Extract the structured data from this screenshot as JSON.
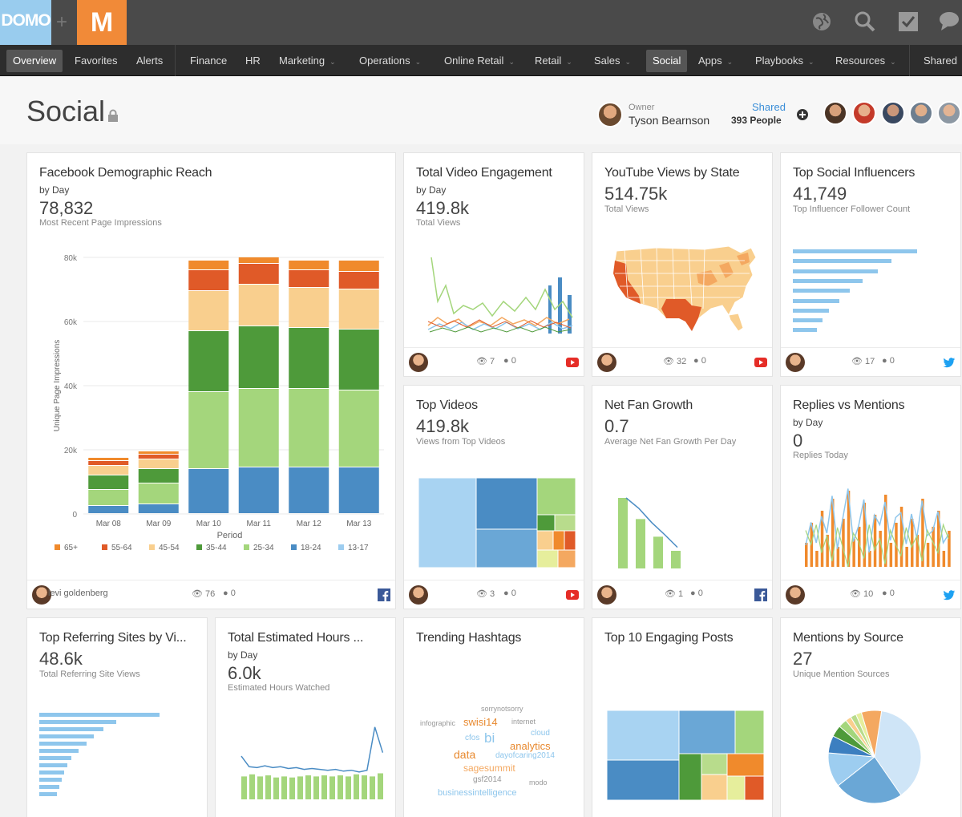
{
  "app": {
    "logo_text": "DOMO",
    "plus": "+",
    "m_logo": "M"
  },
  "icons": {
    "globe": "globe-icon",
    "search": "search-icon",
    "check": "checkbox-icon",
    "chat": "chat-icon",
    "lock": "lock-icon",
    "eye": "eye-icon",
    "comment": "comment-icon",
    "youtube": "youtube-icon",
    "facebook": "facebook-icon",
    "twitter": "twitter-icon",
    "add": "add-icon"
  },
  "nav": {
    "overview": "Overview",
    "favorites": "Favorites",
    "alerts": "Alerts",
    "finance": "Finance",
    "hr": "HR",
    "marketing": "Marketing",
    "operations": "Operations",
    "online_retail": "Online Retail",
    "retail": "Retail",
    "sales": "Sales",
    "social": "Social",
    "apps": "Apps",
    "playbooks": "Playbooks",
    "resources": "Resources",
    "shared": "Shared"
  },
  "page": {
    "title": "Social",
    "owner_label": "Owner",
    "owner_name": "Tyson Bearnson",
    "shared_label": "Shared",
    "shared_count": "393 People"
  },
  "colors": {
    "c65": "#f08a2c",
    "c55": "#e05a28",
    "c45": "#f9cf8e",
    "c35": "#4e9a3a",
    "c25": "#a4d67c",
    "c18": "#4a8cc4",
    "c13": "#9dcdf0",
    "line": "#8ec6ec"
  },
  "cards": {
    "fb": {
      "title": "Facebook Demographic Reach",
      "sub": "by Day",
      "value": "78,832",
      "desc": "Most Recent Page Impressions",
      "owner": "levi goldenberg",
      "views": "76",
      "comments": "0"
    },
    "tve": {
      "title": "Total Video Engagement",
      "sub": "by Day",
      "value": "419.8k",
      "desc": "Total Views",
      "views": "7",
      "comments": "0"
    },
    "yt": {
      "title": "YouTube Views by State",
      "value": "514.75k",
      "desc": "Total Views",
      "views": "32",
      "comments": "0"
    },
    "tsi": {
      "title": "Top Social Influencers",
      "value": "41,749",
      "desc": "Top Influencer Follower Count",
      "views": "17",
      "comments": "0"
    },
    "tv": {
      "title": "Top Videos",
      "value": "419.8k",
      "desc": "Views from Top Videos",
      "views": "3",
      "comments": "0"
    },
    "nfg": {
      "title": "Net Fan Growth",
      "value": "0.7",
      "desc": "Average Net Fan Growth Per Day",
      "views": "1",
      "comments": "0"
    },
    "rvm": {
      "title": "Replies vs Mentions",
      "sub": "by Day",
      "value": "0",
      "desc": "Replies Today",
      "views": "10",
      "comments": "0"
    },
    "trs": {
      "title": "Top Referring Sites by Vi...",
      "value": "48.6k",
      "desc": "Total Referring Site Views"
    },
    "teh": {
      "title": "Total Estimated Hours ...",
      "sub": "by Day",
      "value": "6.0k",
      "desc": "Estimated Hours Watched"
    },
    "th": {
      "title": "Trending Hashtags"
    },
    "tep": {
      "title": "Top 10 Engaging Posts"
    },
    "mbs": {
      "title": "Mentions by Source",
      "value": "27",
      "desc": "Unique Mention Sources"
    }
  },
  "hashtags": [
    {
      "text": "sorrynotsorry",
      "color": "#999"
    },
    {
      "text": "infographic",
      "color": "#999"
    },
    {
      "text": "swisi14",
      "color": "#e8892f"
    },
    {
      "text": "internet",
      "color": "#999"
    },
    {
      "text": "cloud",
      "color": "#8ec6ec"
    },
    {
      "text": "cfos",
      "color": "#8ec6ec"
    },
    {
      "text": "bi",
      "color": "#8ec6ec"
    },
    {
      "text": "analytics",
      "color": "#e8892f"
    },
    {
      "text": "data",
      "color": "#e8892f"
    },
    {
      "text": "dayofcaring2014",
      "color": "#8ec6ec"
    },
    {
      "text": "sagesummit",
      "color": "#f4a860"
    },
    {
      "text": "gsf2014",
      "color": "#999"
    },
    {
      "text": "modo",
      "color": "#999"
    },
    {
      "text": "businessintelligence",
      "color": "#8ec6ec"
    }
  ],
  "chart_data": [
    {
      "type": "bar",
      "title": "Facebook Demographic Reach",
      "xlabel": "Period",
      "ylabel": "Unique Page Impressions",
      "ylim": [
        0,
        80000
      ],
      "yticks": [
        "0",
        "20k",
        "40k",
        "60k",
        "80k"
      ],
      "categories": [
        "Mar 08",
        "Mar 09",
        "Mar 10",
        "Mar 11",
        "Mar 12",
        "Mar 13"
      ],
      "series": [
        {
          "name": "18-24",
          "color": "#4a8cc4",
          "values": [
            2500,
            3000,
            14000,
            14500,
            14500,
            14500
          ]
        },
        {
          "name": "25-34",
          "color": "#a4d67c",
          "values": [
            5000,
            6500,
            24000,
            24500,
            24500,
            24000
          ]
        },
        {
          "name": "35-44",
          "color": "#4e9a3a",
          "values": [
            4500,
            4500,
            19000,
            19500,
            19000,
            19000
          ]
        },
        {
          "name": "45-54",
          "color": "#f9cf8e",
          "values": [
            3000,
            3000,
            12500,
            13000,
            12500,
            12500
          ]
        },
        {
          "name": "55-64",
          "color": "#e05a28",
          "values": [
            1500,
            1500,
            6500,
            6500,
            5500,
            5500
          ]
        },
        {
          "name": "65+",
          "color": "#f08a2c",
          "values": [
            1000,
            1000,
            3000,
            2000,
            3000,
            3500
          ]
        },
        {
          "name": "13-17",
          "color": "#9dcdf0",
          "values": [
            0,
            0,
            0,
            0,
            0,
            0
          ]
        }
      ],
      "legend": [
        "65+",
        "55-64",
        "45-54",
        "35-44",
        "25-34",
        "18-24",
        "13-17"
      ]
    },
    {
      "type": "bar",
      "title": "Top Social Influencers",
      "values": [
        41749,
        33000,
        28500,
        23500,
        19000,
        15500,
        12000,
        10000,
        8000
      ]
    },
    {
      "type": "bar",
      "title": "Top Referring Sites by Views",
      "values": [
        48600,
        31000,
        26000,
        22000,
        19000,
        16000,
        13000,
        11500,
        10000,
        9000,
        8000,
        7000
      ]
    },
    {
      "type": "bar",
      "title": "Net Fan Growth",
      "values": [
        1.0,
        0.7,
        0.45,
        0.25
      ],
      "line": [
        1.0,
        0.85,
        0.65,
        0.48,
        0.3
      ]
    },
    {
      "type": "bar",
      "title": "Total Estimated Hours",
      "values": [
        2.2,
        2.4,
        2.2,
        2.3,
        2.1,
        2.2,
        2.1,
        2.2,
        2.3,
        2.2,
        2.3,
        2.2,
        2.3,
        2.2,
        2.4,
        2.3,
        2.2,
        2.5
      ],
      "line": [
        4.9,
        3.7,
        3.6,
        3.8,
        3.6,
        3.7,
        3.5,
        3.6,
        3.4,
        3.5,
        3.4,
        3.3,
        3.4,
        3.2,
        3.3,
        3.1,
        3.3,
        8.2,
        5.3
      ],
      "ylim": [
        0,
        10
      ]
    },
    {
      "type": "pie",
      "title": "Mentions by Source",
      "values": [
        38,
        24,
        12,
        6,
        4,
        3,
        2,
        2,
        2,
        7
      ],
      "colors": [
        "#cfe5f7",
        "#6aa7d6",
        "#9dcdf0",
        "#3c7fc0",
        "#4e9a3a",
        "#a4d67c",
        "#f9cf8e",
        "#b8dc8c",
        "#e6ee9c",
        "#f4a860"
      ]
    }
  ]
}
